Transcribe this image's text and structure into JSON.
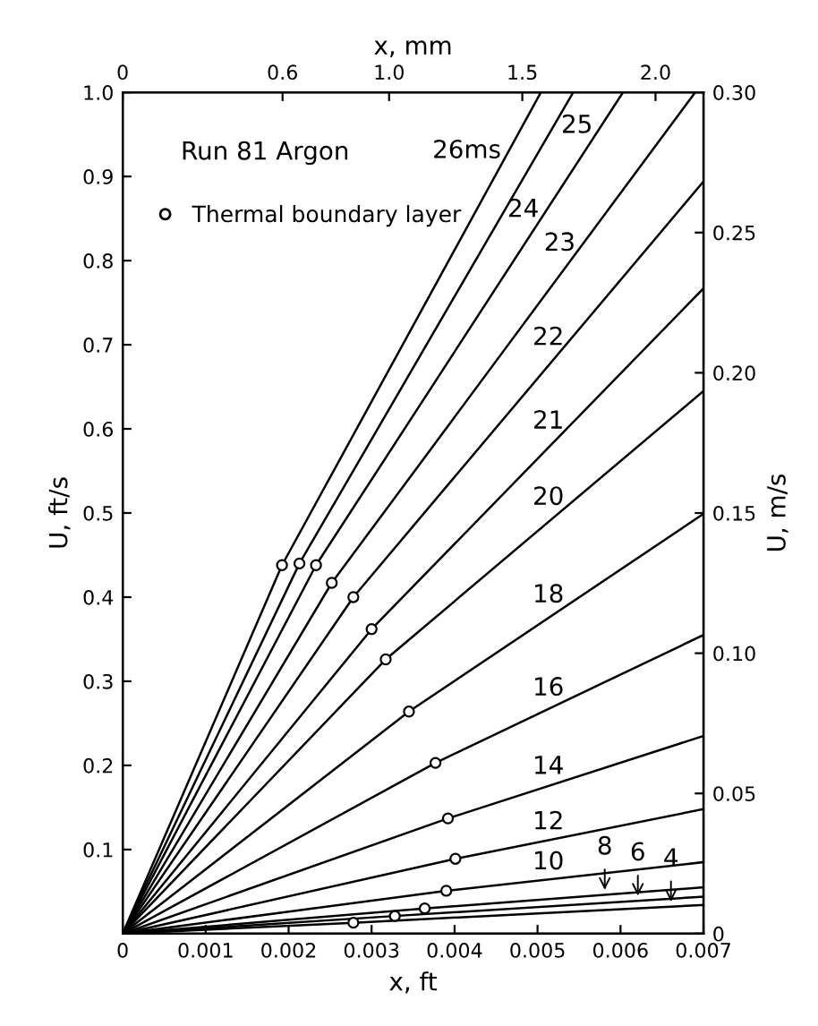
{
  "chart_data": {
    "type": "line",
    "xlabel": "x, ft",
    "x2label": "x, mm",
    "ylabel": "U, ft/s",
    "y2label": "U, m/s",
    "annotations": [
      "Run 81 Argon"
    ],
    "xlim": [
      0,
      0.007
    ],
    "xticks": [
      0,
      0.001,
      0.002,
      0.003,
      0.004,
      0.005,
      0.006,
      0.007
    ],
    "ylim": [
      0,
      1.0
    ],
    "yticks": [
      {
        "value": 0,
        "label": null
      },
      0.1,
      0.2,
      0.3,
      0.4,
      0.5,
      0.6,
      0.7,
      0.8,
      0.9,
      {
        "value": 1.0,
        "label": "1.0"
      }
    ],
    "x2lim": [
      0,
      2.18
    ],
    "x2ticks": [
      0,
      0.6,
      {
        "value": 1.0,
        "label": "1.0"
      },
      1.5,
      {
        "value": 2.0,
        "label": "2.0"
      }
    ],
    "y2lim": [
      0,
      0.3
    ],
    "y2ticks": [
      0,
      0.05,
      {
        "value": 0.1,
        "label": "0.10"
      },
      0.15,
      {
        "value": 0.2,
        "label": "0.20"
      },
      0.25,
      {
        "value": 0.3,
        "label": "0.30"
      }
    ],
    "grid": false,
    "legend": "top left",
    "marker": "none",
    "line_style": "solid",
    "series": [
      {
        "name": "26ms",
        "color": "#000000",
        "x": [
          0,
          0.00192,
          0.00504
        ],
        "values": [
          0,
          0.438,
          1.0
        ]
      },
      {
        "name": "25",
        "color": "#000000",
        "x": [
          0,
          0.00213,
          0.00543
        ],
        "values": [
          0,
          0.44,
          1.0
        ]
      },
      {
        "name": "24",
        "color": "#000000",
        "x": [
          0,
          0.00233,
          0.00603
        ],
        "values": [
          0,
          0.438,
          1.0
        ]
      },
      {
        "name": "23",
        "color": "#000000",
        "x": [
          0,
          0.00252,
          0.0069
        ],
        "values": [
          0,
          0.417,
          1.0
        ]
      },
      {
        "name": "22",
        "color": "#000000",
        "x": [
          0,
          0.00278,
          0.007
        ],
        "values": [
          0,
          0.4,
          0.894
        ]
      },
      {
        "name": "21",
        "color": "#000000",
        "x": [
          0,
          0.003,
          0.007
        ],
        "values": [
          0,
          0.362,
          0.767
        ]
      },
      {
        "name": "20",
        "color": "#000000",
        "x": [
          0,
          0.00317,
          0.007
        ],
        "values": [
          0,
          0.326,
          0.645
        ]
      },
      {
        "name": "18",
        "color": "#000000",
        "x": [
          0,
          0.00345,
          0.007
        ],
        "values": [
          0,
          0.264,
          0.499
        ]
      },
      {
        "name": "16",
        "color": "#000000",
        "x": [
          0,
          0.00377,
          0.007
        ],
        "values": [
          0,
          0.203,
          0.355
        ]
      },
      {
        "name": "14",
        "color": "#000000",
        "x": [
          0,
          0.00392,
          0.007
        ],
        "values": [
          0,
          0.137,
          0.235
        ]
      },
      {
        "name": "12",
        "color": "#000000",
        "x": [
          0,
          0.00401,
          0.007
        ],
        "values": [
          0,
          0.089,
          0.148
        ]
      },
      {
        "name": "10",
        "color": "#000000",
        "x": [
          0,
          0.0039,
          0.007
        ],
        "values": [
          0,
          0.051,
          0.085
        ]
      },
      {
        "name": "8",
        "color": "#000000",
        "x": [
          0,
          0.00364,
          0.007
        ],
        "values": [
          0,
          0.03,
          0.055
        ]
      },
      {
        "name": "6",
        "color": "#000000",
        "x": [
          0,
          0.00328,
          0.007
        ],
        "values": [
          0,
          0.021,
          0.044
        ]
      },
      {
        "name": "4",
        "color": "#000000",
        "x": [
          0,
          0.00278,
          0.007
        ],
        "values": [
          0,
          0.013,
          0.034
        ]
      },
      {
        "name": "Thermal boundary layer",
        "type": "scatter",
        "marker": "circle",
        "color": "#000000",
        "x": [
          0.00192,
          0.00213,
          0.00233,
          0.00252,
          0.00278,
          0.003,
          0.00317,
          0.00345,
          0.00377,
          0.00392,
          0.00401,
          0.0039,
          0.00364,
          0.00328,
          0.00278
        ],
        "values": [
          0.438,
          0.44,
          0.438,
          0.417,
          0.4,
          0.362,
          0.326,
          0.264,
          0.203,
          0.137,
          0.089,
          0.051,
          0.03,
          0.021,
          0.013
        ]
      }
    ]
  }
}
